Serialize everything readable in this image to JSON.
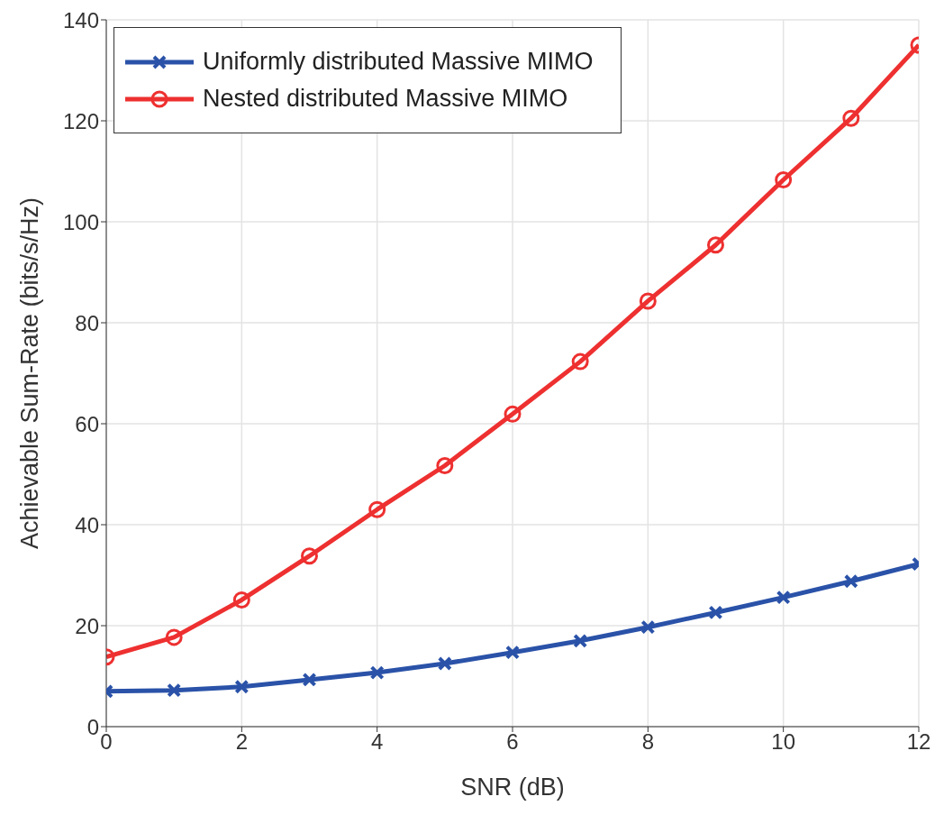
{
  "chart_data": {
    "type": "line",
    "xlabel": "SNR (dB)",
    "ylabel": "Achievable Sum-Rate (bits/s/Hz)",
    "x": [
      0,
      1,
      2,
      3,
      4,
      5,
      6,
      7,
      8,
      9,
      10,
      11,
      12
    ],
    "series": [
      {
        "name": "Uniformly distributed Massive MIMO",
        "color": "#2a52a8",
        "marker": "cross",
        "values": [
          7.0,
          7.2,
          7.9,
          9.3,
          10.7,
          12.5,
          14.7,
          17.0,
          19.7,
          22.6,
          25.6,
          28.8,
          32.2
        ]
      },
      {
        "name": "Nested distributed Massive MIMO",
        "color": "#ee3030",
        "marker": "circle",
        "values": [
          13.8,
          17.7,
          25.1,
          33.8,
          43.0,
          51.7,
          61.9,
          72.3,
          84.3,
          95.4,
          108.3,
          120.5,
          135.0
        ]
      }
    ],
    "xlim": [
      0,
      12
    ],
    "xticks": [
      0,
      2,
      4,
      6,
      8,
      10,
      12
    ],
    "ylim": [
      0,
      140
    ],
    "yticks": [
      0,
      20,
      40,
      60,
      80,
      100,
      120,
      140
    ],
    "grid": true,
    "legend": "top left",
    "line_style": "solid"
  }
}
